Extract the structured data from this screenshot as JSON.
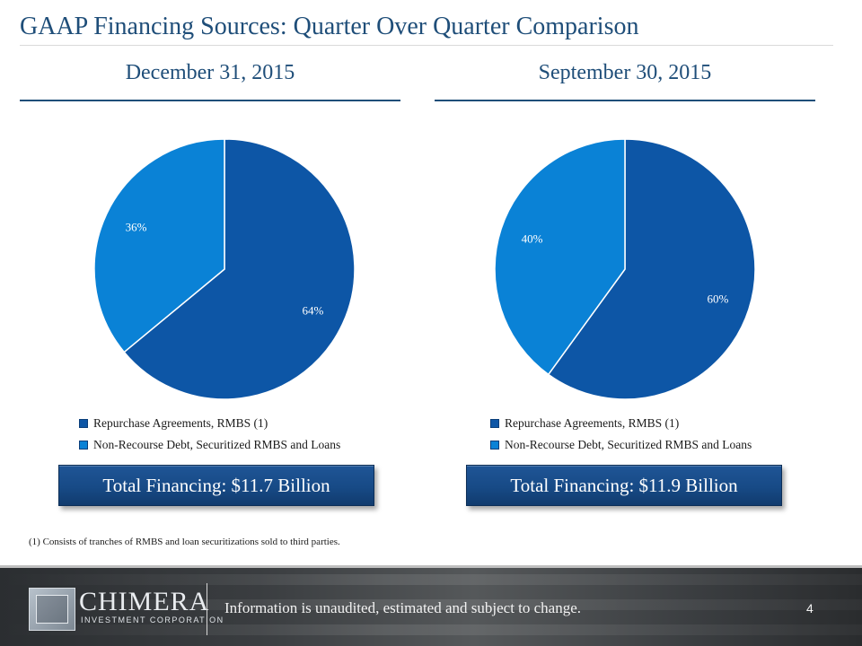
{
  "title": "GAAP Financing Sources: Quarter Over Quarter Comparison",
  "colors": {
    "title": "#1f4e79",
    "repurchase": "#0d56a6",
    "non_recourse": "#0a82d6",
    "total_box": "#1a4f8f"
  },
  "chart_data": [
    {
      "type": "pie",
      "title": "December 31, 2015",
      "series": [
        {
          "name": "Repurchase Agreements, RMBS (1)",
          "value": 64,
          "label": "64%",
          "color": "#0d56a6"
        },
        {
          "name": "Non-Recourse Debt, Securitized RMBS and Loans",
          "value": 36,
          "label": "36%",
          "color": "#0a82d6"
        }
      ],
      "legend": "bottom",
      "total": "Total Financing: $11.7 Billion"
    },
    {
      "type": "pie",
      "title": "September 30, 2015",
      "series": [
        {
          "name": "Repurchase Agreements, RMBS (1)",
          "value": 60,
          "label": "60%",
          "color": "#0d56a6"
        },
        {
          "name": "Non-Recourse Debt, Securitized RMBS and Loans",
          "value": 40,
          "label": "40%",
          "color": "#0a82d6"
        }
      ],
      "legend": "bottom",
      "total": "Total Financing: $11.9 Billion"
    }
  ],
  "footnote": "(1) Consists of tranches of RMBS and loan securitizations sold to third parties.",
  "footer": {
    "logo_name": "CHIMERA",
    "logo_subtitle": "INVESTMENT CORPORATION",
    "disclaimer": "Information is unaudited, estimated and subject to change.",
    "page_number": "4"
  }
}
